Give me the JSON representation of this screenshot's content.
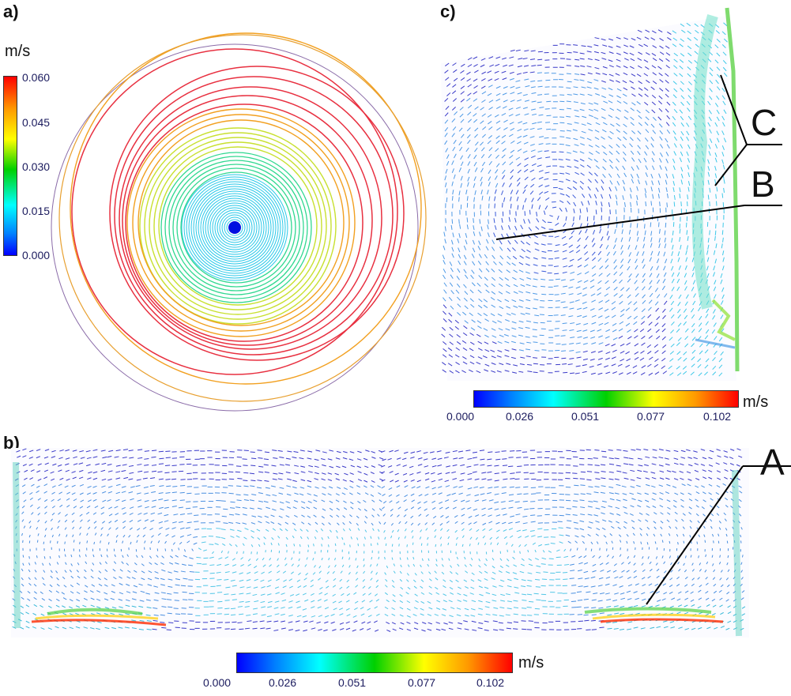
{
  "panels": {
    "a": {
      "label": "a)",
      "unit": "m/s",
      "ticks": [
        "0.060",
        "0.045",
        "0.030",
        "0.015",
        "0.000"
      ]
    },
    "b": {
      "label": "b)",
      "unit": "m/s",
      "ticks": [
        "0.000",
        "0.026",
        "0.051",
        "0.077",
        "0.102"
      ],
      "callout": "A"
    },
    "c": {
      "label": "c)",
      "unit": "m/s",
      "ticks": [
        "0.000",
        "0.026",
        "0.051",
        "0.077",
        "0.102"
      ],
      "callouts": [
        "C",
        "B"
      ]
    }
  },
  "colors": {
    "blue": "#0000ff",
    "cyan": "#00ffff",
    "green": "#00c000",
    "yellow": "#ffff00",
    "orange": "#ff9900",
    "red": "#ff0000",
    "vector_dark": "#3a3ac8",
    "vector_light": "#4fb6e6"
  }
}
